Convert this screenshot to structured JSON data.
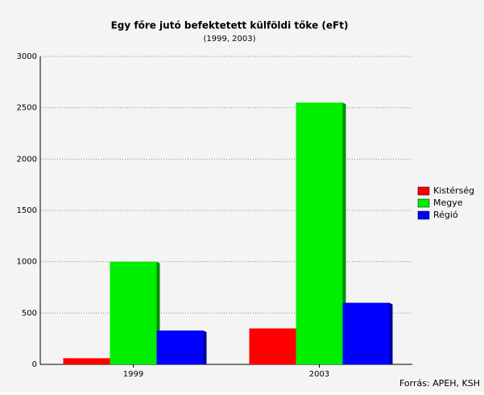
{
  "chart_data": {
    "type": "bar",
    "title": "Egy főre jutó befektetett külföldi tőke (eFt)",
    "subtitle": "(1999, 2003)",
    "categories": [
      "1999",
      "2003"
    ],
    "series": [
      {
        "name": "Kistérség",
        "color": "#ff0000",
        "values": [
          60,
          350
        ]
      },
      {
        "name": "Megye",
        "color": "#00ee00",
        "values": [
          1000,
          2550
        ]
      },
      {
        "name": "Régió",
        "color": "#0000ff",
        "values": [
          330,
          600
        ]
      }
    ],
    "ylim": [
      0,
      3000
    ],
    "yticks": [
      0,
      500,
      1000,
      1500,
      2000,
      2500,
      3000
    ],
    "grid": true,
    "legend": "right",
    "source": "Forrás: APEH, KSH"
  }
}
